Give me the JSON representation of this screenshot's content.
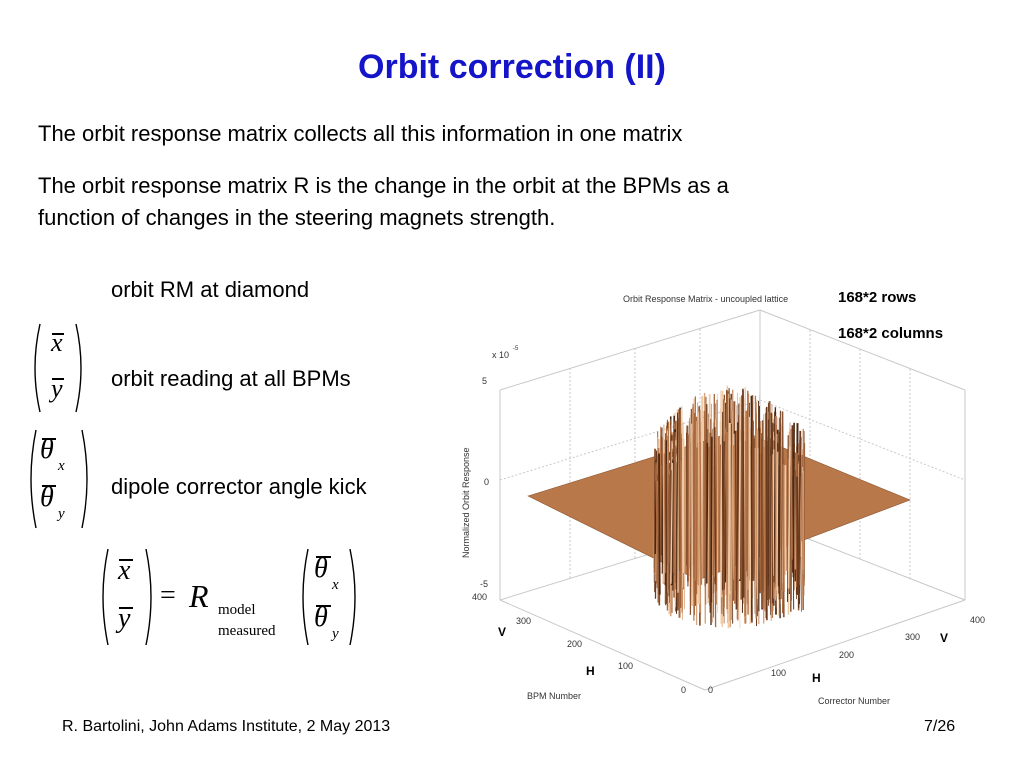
{
  "slide": {
    "title": "Orbit correction (II)",
    "para1": "The orbit response matrix collects all this information in one matrix",
    "para2_line1": "The orbit response matrix R is the change in the orbit at the BPMs as a",
    "para2_line2": "function of changes in the steering magnets strength."
  },
  "legend": {
    "rm_label": "orbit RM at diamond",
    "bpm_label": "orbit reading at all BPMs",
    "kick_label": "dipole corrector angle kick"
  },
  "equation": {
    "x": "x",
    "y": "y",
    "theta": "θ",
    "sub_x": "x",
    "sub_y": "y",
    "equals": "=",
    "R": "R",
    "sub_top": "model",
    "sub_bottom": "measured"
  },
  "notes": {
    "rows": "168*2 rows",
    "columns": "168*2 columns"
  },
  "plot": {
    "title": "Orbit Response Matrix - uncoupled lattice",
    "exponent_label": "x 10",
    "exponent": "-5",
    "z_label": "Normalized Orbit Response",
    "z_ticks": [
      "5",
      "0",
      "-5"
    ],
    "bpm_axis_label": "BPM Number",
    "bpm_ticks": [
      "400",
      "300",
      "200",
      "100",
      "0"
    ],
    "corrector_axis_label": "Corrector Number",
    "corrector_ticks": [
      "0",
      "100",
      "200",
      "300",
      "400"
    ],
    "bpm_v": "V",
    "bpm_h": "H",
    "cor_v": "V",
    "cor_h": "H",
    "surface_color": "#b8784a"
  },
  "footer": {
    "author": "R. Bartolini, John Adams Institute, 2 May 2013",
    "page": "7/26"
  }
}
